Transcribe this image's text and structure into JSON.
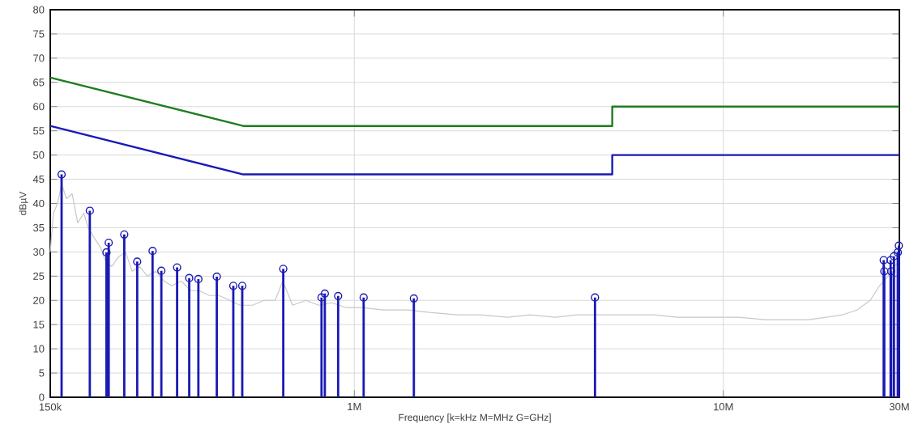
{
  "chart_data": {
    "type": "line",
    "xlabel": "Frequency [k=kHz M=MHz G=GHz]",
    "ylabel": "dBµV",
    "log": "x",
    "grid": true,
    "xlim": [
      150000,
      30000000
    ],
    "ylim": [
      0,
      80
    ],
    "xticks": [
      {
        "value": 150000,
        "label": "150k"
      },
      {
        "value": 1000000,
        "label": "1M"
      },
      {
        "value": 10000000,
        "label": "10M"
      },
      {
        "value": 30000000,
        "label": "30M"
      }
    ],
    "yticks": [
      0,
      5,
      10,
      15,
      20,
      25,
      30,
      35,
      40,
      45,
      50,
      55,
      60,
      65,
      70,
      75,
      80
    ],
    "series": [
      {
        "color": "#c8c8c8",
        "x": [
          150000,
          153000,
          157000,
          161000,
          166000,
          172000,
          178000,
          185000,
          190000,
          197000,
          205000,
          212000,
          220000,
          230000,
          240000,
          250000,
          262000,
          275000,
          290000,
          305000,
          320000,
          340000,
          360000,
          380000,
          405000,
          430000,
          460000,
          490000,
          530000,
          570000,
          610000,
          640000,
          680000,
          740000,
          800000,
          870000,
          950000,
          1050000,
          1200000,
          1400000,
          1600000,
          1900000,
          2200000,
          2600000,
          3000000,
          3500000,
          4000000,
          4600000,
          5500000,
          6500000,
          7500000,
          9000000,
          11000000,
          13000000,
          15000000,
          17000000,
          19000000,
          21000000,
          23000000,
          25000000,
          26500000,
          28000000,
          29000000,
          30000000
        ],
        "values": [
          30,
          38,
          40,
          44,
          41,
          42,
          36,
          38,
          35,
          33,
          31,
          28,
          27,
          29,
          30,
          26,
          27,
          25,
          26,
          24,
          23,
          24,
          22,
          22,
          21,
          21,
          20,
          19,
          19,
          20,
          20,
          24,
          19,
          20,
          19,
          19.5,
          18.5,
          18.5,
          18,
          18,
          17.5,
          17,
          17,
          16.5,
          17,
          16.5,
          17,
          17,
          17,
          17,
          16.5,
          16.5,
          16.5,
          16,
          16,
          16,
          16.5,
          17,
          18,
          20,
          23,
          25,
          27,
          28
        ]
      },
      {
        "color": "#1e7d1e",
        "x": [
          150000,
          500000,
          5000000,
          5000000,
          30000000
        ],
        "values": [
          66,
          56,
          56,
          60,
          60
        ]
      },
      {
        "color": "#1a1ab4",
        "x": [
          150000,
          500000,
          5000000,
          5000000,
          30000000
        ],
        "values": [
          56,
          46,
          46,
          50,
          50
        ]
      },
      {
        "type": "lollipop",
        "color": "#1a1ab4",
        "marker": "circle",
        "x": [
          161000,
          192000,
          213000,
          216000,
          238000,
          258000,
          284000,
          300000,
          331000,
          357000,
          378000,
          424000,
          470000,
          497000,
          642000,
          815000,
          832000,
          904000,
          1060000,
          1450000,
          4490000,
          27200000,
          27300000,
          28400000,
          28500000,
          29000000,
          29700000,
          29900000
        ],
        "values": [
          46,
          38.5,
          29.9,
          31.9,
          33.6,
          28,
          30.2,
          26.1,
          26.8,
          24.6,
          24.4,
          24.9,
          23,
          23,
          26.5,
          20.6,
          21.4,
          20.9,
          20.6,
          20.4,
          20.6,
          28.3,
          26,
          28.3,
          26,
          29.1,
          29.9,
          31.3
        ]
      }
    ]
  }
}
